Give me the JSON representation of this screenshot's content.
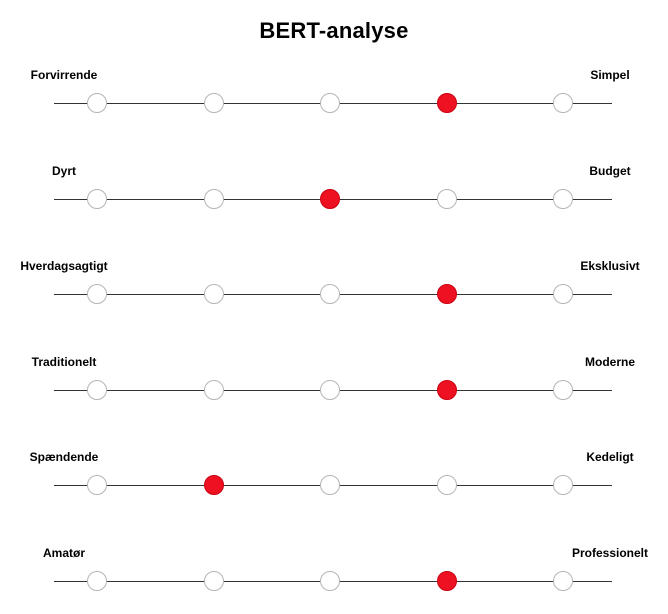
{
  "title": "BERT-analyse",
  "colors": {
    "selected": "#ee1122",
    "unselected": "#ffffff",
    "track": "#333333"
  },
  "points_per_scale": 5,
  "scales": [
    {
      "left": "Forvirrende",
      "right": "Simpel",
      "selected": 4
    },
    {
      "left": "Dyrt",
      "right": "Budget",
      "selected": 3
    },
    {
      "left": "Hverdagsagtigt",
      "right": "Eksklusivt",
      "selected": 4
    },
    {
      "left": "Traditionelt",
      "right": "Moderne",
      "selected": 4
    },
    {
      "left": "Spændende",
      "right": "Kedeligt",
      "selected": 2
    },
    {
      "left": "Amatør",
      "right": "Professionelt",
      "selected": 4
    }
  ]
}
